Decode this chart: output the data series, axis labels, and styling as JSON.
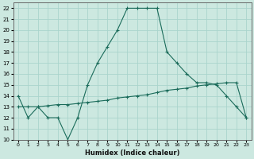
{
  "xlabel": "Humidex (Indice chaleur)",
  "ylabel": "",
  "xlim": [
    -0.5,
    23.5
  ],
  "ylim": [
    10,
    22.5
  ],
  "xticks": [
    0,
    1,
    2,
    3,
    4,
    5,
    6,
    7,
    8,
    9,
    10,
    11,
    12,
    13,
    14,
    15,
    16,
    17,
    18,
    19,
    20,
    21,
    22,
    23
  ],
  "yticks": [
    10,
    11,
    12,
    13,
    14,
    15,
    16,
    17,
    18,
    19,
    20,
    21,
    22
  ],
  "bg_color": "#cce8e0",
  "grid_color": "#aad4cc",
  "line_color": "#1a6b5a",
  "line1_x": [
    0,
    1,
    2,
    3,
    4,
    5,
    6,
    7,
    8,
    9,
    10,
    11,
    12,
    13,
    14,
    15,
    16,
    17,
    18,
    19,
    20,
    21,
    22,
    23
  ],
  "line1_y": [
    14,
    12,
    13,
    12,
    12,
    10,
    12,
    15,
    17,
    18.5,
    20,
    22,
    22,
    22,
    22,
    18,
    17,
    16,
    15.2,
    15.2,
    15,
    14,
    13,
    12
  ],
  "line2_x": [
    0,
    1,
    2,
    3,
    4,
    5,
    6,
    7,
    8,
    9,
    10,
    11,
    12,
    13,
    14,
    15,
    16,
    17,
    18,
    19,
    20,
    21,
    22,
    23
  ],
  "line2_y": [
    13,
    13,
    13,
    13.1,
    13.2,
    13.2,
    13.3,
    13.4,
    13.5,
    13.6,
    13.8,
    13.9,
    14.0,
    14.1,
    14.3,
    14.5,
    14.6,
    14.7,
    14.9,
    15.0,
    15.1,
    15.2,
    15.2,
    12
  ]
}
